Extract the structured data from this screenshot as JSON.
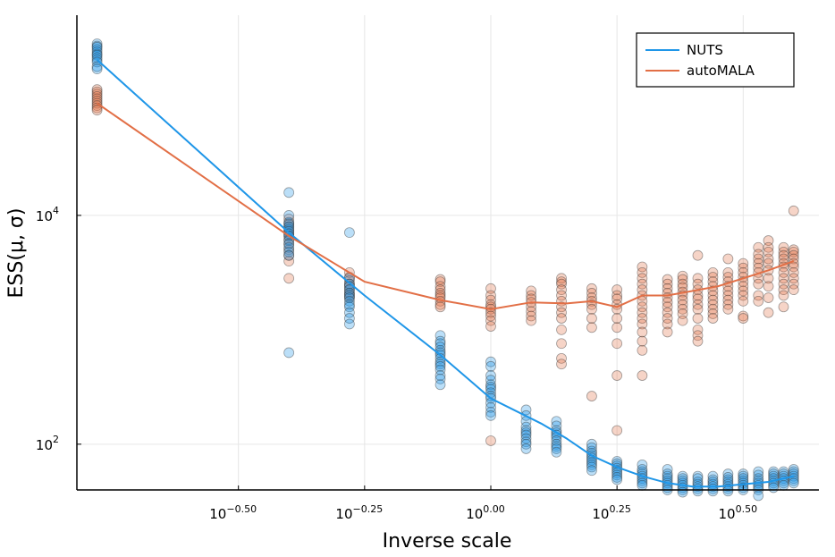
{
  "chart_data": {
    "type": "scatter",
    "title": "",
    "xlabel": "Inverse scale",
    "ylabel": "ESS(μ, σ)",
    "x_scale": "log10",
    "y_scale": "log10",
    "x_log_range": [
      -0.82,
      0.65
    ],
    "y_log_range": [
      1.6,
      5.75
    ],
    "x_ticks": [
      {
        "exp": -0.5,
        "base": "10",
        "sup": "−0.50"
      },
      {
        "exp": -0.25,
        "base": "10",
        "sup": "−0.25"
      },
      {
        "exp": 0.0,
        "base": "10",
        "sup": "0.00"
      },
      {
        "exp": 0.25,
        "base": "10",
        "sup": "0.25"
      },
      {
        "exp": 0.5,
        "base": "10",
        "sup": "0.50"
      }
    ],
    "y_ticks": [
      {
        "exp": 2,
        "base": "10",
        "sup": "2"
      },
      {
        "exp": 4,
        "base": "10",
        "sup": "4"
      }
    ],
    "grid": true,
    "legend_position": "top-right",
    "x_positions_log": [
      -0.78,
      -0.5,
      -0.25,
      0.0,
      0.25,
      0.5
    ],
    "series": [
      {
        "name": "NUTS",
        "color": "#1f96e8",
        "line_log_points": [
          [
            -0.78,
            5.36
          ],
          [
            -0.4,
            3.85
          ],
          [
            -0.25,
            3.3
          ],
          [
            -0.1,
            2.78
          ],
          [
            0.0,
            2.4
          ],
          [
            0.1,
            2.18
          ],
          [
            0.15,
            2.05
          ],
          [
            0.2,
            1.9
          ],
          [
            0.25,
            1.8
          ],
          [
            0.3,
            1.72
          ],
          [
            0.35,
            1.66
          ],
          [
            0.4,
            1.63
          ],
          [
            0.45,
            1.63
          ],
          [
            0.5,
            1.65
          ],
          [
            0.55,
            1.67
          ],
          [
            0.6,
            1.72
          ]
        ],
        "point_groups": [
          {
            "x": -0.78,
            "y": [
              5.5,
              5.48,
              5.47,
              5.45,
              5.43,
              5.41,
              5.4,
              5.38,
              5.36,
              5.34,
              5.3,
              5.28
            ]
          },
          {
            "x": -0.4,
            "y": [
              4.2,
              4.0,
              3.94,
              3.92,
              3.9,
              3.88,
              3.86,
              3.84,
              3.82,
              3.78,
              3.75,
              3.72,
              3.68,
              3.65,
              2.8
            ]
          },
          {
            "x": -0.28,
            "y": [
              3.85,
              3.45,
              3.4,
              3.38,
              3.35,
              3.32,
              3.3,
              3.28,
              3.25,
              3.22,
              3.2,
              3.15,
              3.1,
              3.05
            ]
          },
          {
            "x": -0.1,
            "y": [
              2.95,
              2.9,
              2.88,
              2.85,
              2.82,
              2.8,
              2.78,
              2.75,
              2.72,
              2.7,
              2.68,
              2.65,
              2.6,
              2.57,
              2.52
            ]
          },
          {
            "x": 0.0,
            "y": [
              2.72,
              2.68,
              2.6,
              2.56,
              2.52,
              2.5,
              2.48,
              2.45,
              2.42,
              2.4,
              2.36,
              2.32,
              2.28,
              2.25
            ]
          },
          {
            "x": 0.07,
            "y": [
              2.3,
              2.25,
              2.2,
              2.15,
              2.12,
              2.1,
              2.08,
              2.05,
              2.02,
              2.0,
              1.96
            ]
          },
          {
            "x": 0.13,
            "y": [
              2.2,
              2.16,
              2.12,
              2.1,
              2.08,
              2.06,
              2.03,
              2.0,
              1.98,
              1.96,
              1.93
            ]
          },
          {
            "x": 0.2,
            "y": [
              2.0,
              1.97,
              1.94,
              1.92,
              1.9,
              1.88,
              1.86,
              1.84,
              1.82,
              1.8,
              1.77
            ]
          },
          {
            "x": 0.25,
            "y": [
              1.85,
              1.83,
              1.81,
              1.79,
              1.77,
              1.75,
              1.73,
              1.71,
              1.69
            ]
          },
          {
            "x": 0.3,
            "y": [
              1.82,
              1.78,
              1.76,
              1.74,
              1.72,
              1.7,
              1.68,
              1.66,
              1.64
            ]
          },
          {
            "x": 0.35,
            "y": [
              1.78,
              1.74,
              1.72,
              1.7,
              1.68,
              1.66,
              1.64,
              1.62,
              1.6
            ]
          },
          {
            "x": 0.38,
            "y": [
              1.72,
              1.7,
              1.68,
              1.66,
              1.64,
              1.62,
              1.6,
              1.58
            ]
          },
          {
            "x": 0.41,
            "y": [
              1.72,
              1.7,
              1.67,
              1.65,
              1.63,
              1.61,
              1.59
            ]
          },
          {
            "x": 0.44,
            "y": [
              1.72,
              1.69,
              1.67,
              1.65,
              1.63,
              1.61,
              1.59
            ]
          },
          {
            "x": 0.47,
            "y": [
              1.74,
              1.71,
              1.69,
              1.67,
              1.65,
              1.63,
              1.61,
              1.59
            ]
          },
          {
            "x": 0.5,
            "y": [
              1.74,
              1.72,
              1.7,
              1.68,
              1.66,
              1.64,
              1.62,
              1.6
            ]
          },
          {
            "x": 0.53,
            "y": [
              1.76,
              1.73,
              1.7,
              1.68,
              1.66,
              1.64,
              1.62,
              1.6,
              1.55
            ]
          },
          {
            "x": 0.56,
            "y": [
              1.76,
              1.74,
              1.72,
              1.7,
              1.68,
              1.66,
              1.64,
              1.62
            ]
          },
          {
            "x": 0.58,
            "y": [
              1.76,
              1.74,
              1.72,
              1.7,
              1.68,
              1.66,
              1.64
            ]
          },
          {
            "x": 0.6,
            "y": [
              1.78,
              1.76,
              1.74,
              1.72,
              1.7,
              1.68,
              1.66
            ]
          }
        ]
      },
      {
        "name": "autoMALA",
        "color": "#e26f46",
        "line_log_points": [
          [
            -0.78,
            4.98
          ],
          [
            -0.4,
            3.82
          ],
          [
            -0.25,
            3.42
          ],
          [
            -0.1,
            3.26
          ],
          [
            0.0,
            3.18
          ],
          [
            0.08,
            3.24
          ],
          [
            0.15,
            3.23
          ],
          [
            0.2,
            3.25
          ],
          [
            0.25,
            3.2
          ],
          [
            0.3,
            3.3
          ],
          [
            0.35,
            3.3
          ],
          [
            0.4,
            3.34
          ],
          [
            0.45,
            3.38
          ],
          [
            0.5,
            3.45
          ],
          [
            0.55,
            3.52
          ],
          [
            0.6,
            3.6
          ]
        ],
        "point_groups": [
          {
            "x": -0.78,
            "y": [
              5.1,
              5.08,
              5.06,
              5.04,
              5.02,
              5.0,
              4.98,
              4.96,
              4.94,
              4.92
            ]
          },
          {
            "x": -0.4,
            "y": [
              3.97,
              3.93,
              3.9,
              3.87,
              3.84,
              3.82,
              3.79,
              3.75,
              3.7,
              3.65,
              3.6,
              3.45
            ]
          },
          {
            "x": -0.28,
            "y": [
              3.5,
              3.46,
              3.43,
              3.4,
              3.38,
              3.35,
              3.32,
              3.3,
              3.28
            ]
          },
          {
            "x": -0.1,
            "y": [
              3.44,
              3.42,
              3.38,
              3.35,
              3.32,
              3.3,
              3.28,
              3.25,
              3.22,
              3.2
            ]
          },
          {
            "x": 0.0,
            "y": [
              3.36,
              3.3,
              3.26,
              3.22,
              3.2,
              3.18,
              3.15,
              3.12,
              3.08,
              3.03,
              2.03
            ]
          },
          {
            "x": 0.08,
            "y": [
              3.34,
              3.3,
              3.27,
              3.24,
              3.2,
              3.16,
              3.12,
              3.08
            ]
          },
          {
            "x": 0.14,
            "y": [
              3.45,
              3.42,
              3.4,
              3.35,
              3.3,
              3.25,
              3.2,
              3.15,
              3.1,
              3.0,
              2.88,
              2.75,
              2.7
            ]
          },
          {
            "x": 0.2,
            "y": [
              3.36,
              3.32,
              3.28,
              3.25,
              3.22,
              3.18,
              3.1,
              3.02,
              2.42
            ]
          },
          {
            "x": 0.25,
            "y": [
              3.35,
              3.3,
              3.27,
              3.22,
              3.18,
              3.1,
              3.02,
              2.88,
              2.6,
              2.12
            ]
          },
          {
            "x": 0.3,
            "y": [
              3.55,
              3.5,
              3.45,
              3.4,
              3.35,
              3.3,
              3.25,
              3.2,
              3.15,
              3.1,
              3.05,
              2.98,
              2.9,
              2.82,
              2.6
            ]
          },
          {
            "x": 0.35,
            "y": [
              3.44,
              3.4,
              3.36,
              3.32,
              3.28,
              3.24,
              3.2,
              3.15,
              3.1,
              3.05,
              2.98
            ]
          },
          {
            "x": 0.38,
            "y": [
              3.47,
              3.44,
              3.4,
              3.37,
              3.33,
              3.3,
              3.26,
              3.22,
              3.18,
              3.14,
              3.08
            ]
          },
          {
            "x": 0.41,
            "y": [
              3.65,
              3.45,
              3.4,
              3.35,
              3.3,
              3.27,
              3.22,
              3.18,
              3.1,
              3.0,
              2.95,
              2.9
            ]
          },
          {
            "x": 0.44,
            "y": [
              3.5,
              3.46,
              3.42,
              3.38,
              3.34,
              3.3,
              3.26,
              3.22,
              3.18,
              3.14,
              3.1
            ]
          },
          {
            "x": 0.47,
            "y": [
              3.62,
              3.5,
              3.46,
              3.42,
              3.38,
              3.34,
              3.3,
              3.26,
              3.22,
              3.18
            ]
          },
          {
            "x": 0.5,
            "y": [
              3.58,
              3.54,
              3.5,
              3.46,
              3.42,
              3.38,
              3.34,
              3.3,
              3.25,
              3.12,
              3.1
            ]
          },
          {
            "x": 0.53,
            "y": [
              3.72,
              3.66,
              3.62,
              3.58,
              3.54,
              3.5,
              3.45,
              3.4,
              3.3,
              3.25
            ]
          },
          {
            "x": 0.55,
            "y": [
              3.78,
              3.72,
              3.68,
              3.62,
              3.58,
              3.52,
              3.45,
              3.38,
              3.28,
              3.15
            ]
          },
          {
            "x": 0.58,
            "y": [
              3.72,
              3.68,
              3.65,
              3.62,
              3.58,
              3.55,
              3.5,
              3.45,
              3.4,
              3.35,
              3.3,
              3.2
            ]
          },
          {
            "x": 0.6,
            "y": [
              4.04,
              3.7,
              3.68,
              3.65,
              3.62,
              3.58,
              3.55,
              3.5,
              3.45,
              3.4,
              3.35
            ]
          }
        ]
      }
    ]
  }
}
